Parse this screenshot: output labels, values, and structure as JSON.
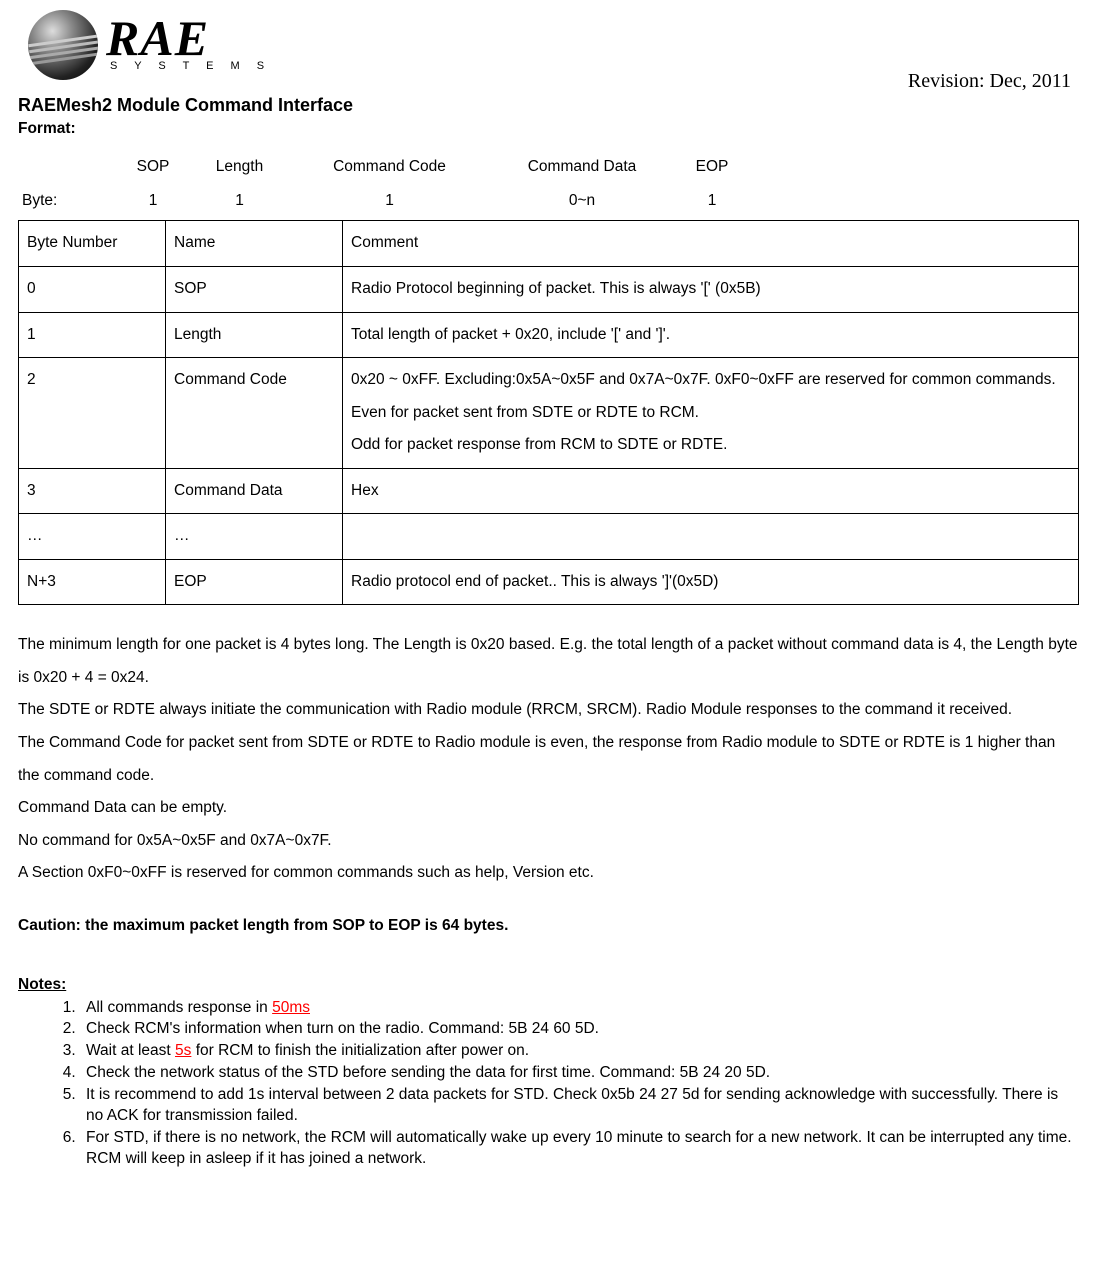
{
  "header": {
    "logo_main": "RAE",
    "logo_sub": "S Y S T E M S",
    "revision": "Revision: Dec, 2011"
  },
  "title": "RAEMesh2 Module Command Interface",
  "format_label": "Format:",
  "format_headers": {
    "blank": "",
    "c1": "SOP",
    "c2": "Length",
    "c3": "Command Code",
    "c4": "Command Data",
    "c5": "EOP"
  },
  "format_byte_row": {
    "label": "Byte:",
    "c1": "1",
    "c2": "1",
    "c3": "1",
    "c4": "0~n",
    "c5": "1"
  },
  "table": {
    "header": {
      "c0": "Byte Number",
      "c1": "Name",
      "c2": "Comment"
    },
    "rows": [
      {
        "c0": "0",
        "c1": "SOP",
        "c2": "Radio Protocol beginning of packet. This is always '[' (0x5B)"
      },
      {
        "c0": "1",
        "c1": "Length",
        "c2": "Total length of packet + 0x20, include '[' and ']'."
      },
      {
        "c0": "2",
        "c1": "Command Code",
        "c2": "0x20 ~ 0xFF. Excluding:0x5A~0x5F and 0x7A~0x7F. 0xF0~0xFF are reserved for common commands.\nEven for packet sent from SDTE or RDTE to RCM.\nOdd for packet response from RCM to SDTE or RDTE."
      },
      {
        "c0": "3",
        "c1": "Command Data",
        "c2": "Hex"
      },
      {
        "c0": "…",
        "c1": "…",
        "c2": ""
      },
      {
        "c0": "N+3",
        "c1": "EOP",
        "c2": "Radio protocol end of packet.. This is always ']'(0x5D)"
      }
    ]
  },
  "body": {
    "p1": "The minimum length for one packet is 4 bytes long. The Length is 0x20 based. E.g.  the total length of a  packet without command data  is 4, the Length byte is 0x20 + 4 = 0x24.",
    "p2": "The SDTE or RDTE always initiate the communication with Radio module (RRCM, SRCM). Radio Module responses to the command it received.",
    "p3": "The Command Code for packet sent from SDTE or RDTE to Radio module is even, the response from Radio module to SDTE or RDTE is 1 higher than the command code.",
    "p4": "Command Data can be empty.",
    "p5": "No command for 0x5A~0x5F and 0x7A~0x7F.",
    "p6": "A Section 0xF0~0xFF is reserved for common commands such as help, Version etc."
  },
  "caution": "Caution: the maximum packet length from SOP to EOP is 64 bytes.",
  "notes_heading": "Notes:",
  "notes": {
    "n1a": "All commands response in ",
    "n1b": "50ms",
    "n2": "Check RCM's information when turn on the radio. Command: 5B 24 60 5D.",
    "n3a": "Wait at least ",
    "n3b": "5s",
    "n3c": " for RCM to finish the initialization after power on.",
    "n4": "Check the network status of the STD before sending the data for first time. Command: 5B 24 20 5D.",
    "n5": "It is recommend to add 1s interval between 2 data packets for STD. Check 0x5b 24 27 5d for sending acknowledge with successfully. There is no ACK for transmission failed.",
    "n6": "For STD, if there is no network, the RCM will automatically wake up every 10 minute to search for a new network. It can be interrupted any time. RCM will keep in asleep if it has joined a network."
  }
}
